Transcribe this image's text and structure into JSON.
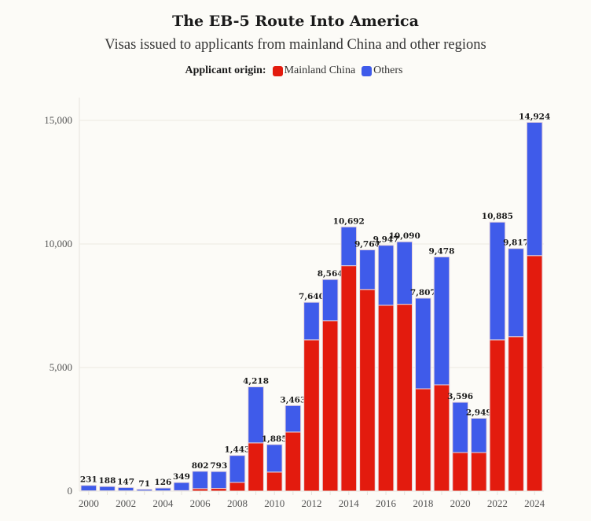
{
  "title": "The EB-5 Route Into America",
  "subtitle": "Visas issued to applicants from mainland China and other regions",
  "legend": {
    "title": "Applicant origin:",
    "items": [
      {
        "label": "Mainland China",
        "color": "#e31b0e"
      },
      {
        "label": "Others",
        "color": "#3f5bea"
      }
    ]
  },
  "chart_data": {
    "type": "bar",
    "stacked": true,
    "title": "The EB-5 Route Into America",
    "subtitle": "Visas issued to applicants from mainland China and other regions",
    "xlabel": "",
    "ylabel": "",
    "ylim": [
      0,
      16000
    ],
    "yticks": [
      0,
      5000,
      10000,
      15000
    ],
    "ytick_labels": [
      "0",
      "5,000",
      "10,000",
      "15,000"
    ],
    "grid": true,
    "legend_position": "top-center",
    "categories": [
      "2000",
      "2001",
      "2002",
      "2003",
      "2004",
      "2005",
      "2006",
      "2007",
      "2008",
      "2009",
      "2010",
      "2011",
      "2012",
      "2013",
      "2014",
      "2015",
      "2016",
      "2017",
      "2018",
      "2019",
      "2020",
      "2021",
      "2022",
      "2023",
      "2024"
    ],
    "xtick_labels": [
      "2000",
      "",
      "2002",
      "",
      "2004",
      "",
      "2006",
      "",
      "2008",
      "",
      "2010",
      "",
      "2012",
      "",
      "2014",
      "",
      "2016",
      "",
      "2018",
      "",
      "2020",
      "",
      "2022",
      "",
      "2024"
    ],
    "totals": [
      231,
      188,
      147,
      71,
      126,
      349,
      802,
      793,
      1443,
      4218,
      1885,
      3463,
      7640,
      8564,
      10692,
      9764,
      9947,
      10090,
      7807,
      9478,
      3596,
      2949,
      10885,
      9817,
      14924
    ],
    "total_labels": [
      "231",
      "188",
      "147",
      "71",
      "126",
      "349",
      "802",
      "793",
      "1,443",
      "4,218",
      "1,885",
      "3,463",
      "7,640",
      "8,564",
      "10,692",
      "9,764",
      "9,947",
      "10,090",
      "7,807",
      "9,478",
      "3,596",
      "2,949",
      "10,885",
      "9,817",
      "14,924"
    ],
    "series": [
      {
        "name": "Mainland China",
        "color": "#e31b0e",
        "values": [
          10,
          10,
          10,
          5,
          10,
          20,
          100,
          110,
          350,
          1950,
          770,
          2390,
          6120,
          6890,
          9120,
          8160,
          7520,
          7560,
          4140,
          4300,
          1560,
          1560,
          6120,
          6250,
          9530
        ]
      },
      {
        "name": "Others",
        "color": "#3f5bea",
        "values": [
          221,
          178,
          137,
          66,
          116,
          329,
          702,
          683,
          1093,
          2268,
          1115,
          1073,
          1520,
          1674,
          1572,
          1604,
          2427,
          2530,
          3667,
          5178,
          2036,
          1389,
          4765,
          3567,
          5394
        ]
      }
    ]
  }
}
